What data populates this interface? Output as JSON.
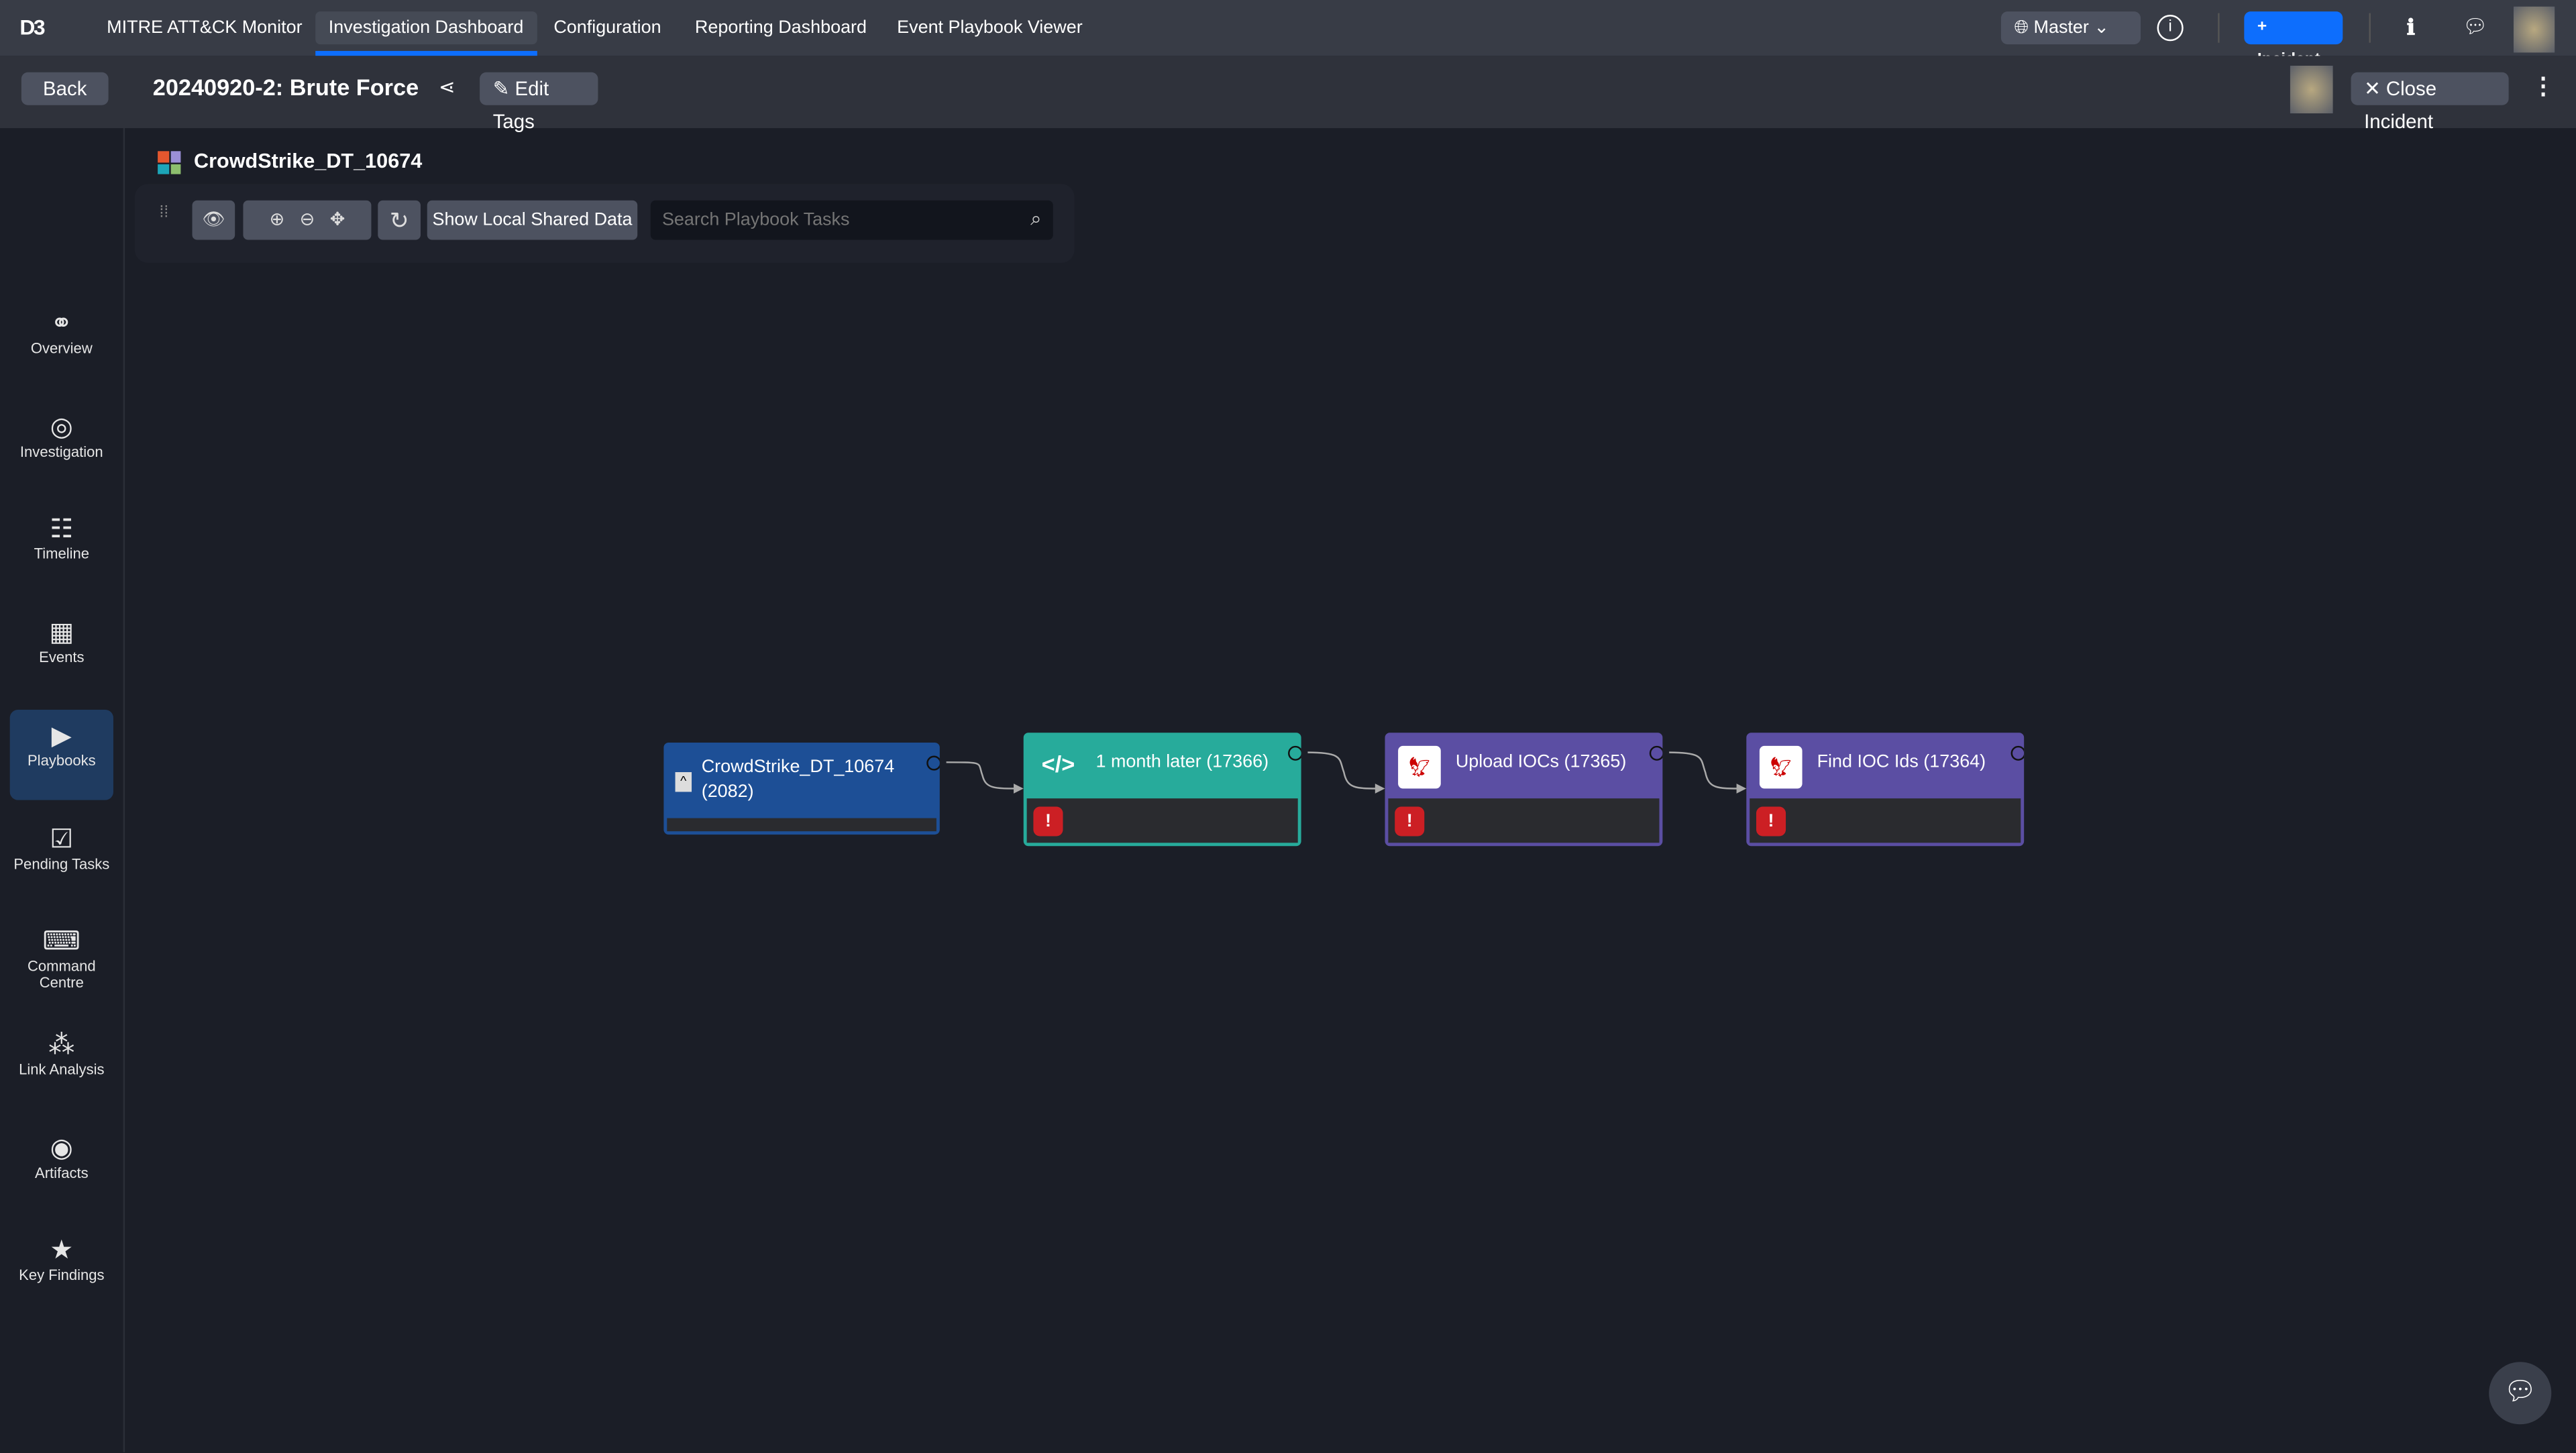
{
  "nav": {
    "logo": "D3",
    "items": [
      "MITRE ATT&CK Monitor",
      "Investigation Dashboard",
      "Configuration",
      "Reporting Dashboard",
      "Event Playbook Viewer"
    ],
    "active": "Investigation Dashboard",
    "site": "Master",
    "new_incident": "+ Incident"
  },
  "header": {
    "back": "Back",
    "title": "20240920-2: Brute Force",
    "edit_tags": "Edit Tags",
    "close_incident": "Close Incident"
  },
  "sidebar": {
    "items": [
      {
        "label": "Overview",
        "icon": "binoculars-icon"
      },
      {
        "label": "Investigation",
        "icon": "target-icon"
      },
      {
        "label": "Timeline",
        "icon": "timeline-icon"
      },
      {
        "label": "Events",
        "icon": "calendar-icon"
      },
      {
        "label": "Playbooks",
        "icon": "playbook-icon",
        "active": true
      },
      {
        "label": "Pending Tasks",
        "icon": "checklist-icon"
      },
      {
        "label": "Command Centre",
        "icon": "terminal-icon"
      },
      {
        "label": "Link Analysis",
        "icon": "network-icon"
      },
      {
        "label": "Artifacts",
        "icon": "fingerprint-icon"
      },
      {
        "label": "Key Findings",
        "icon": "star-icon"
      }
    ]
  },
  "playbook": {
    "name": "CrowdStrike_DT_10674",
    "show_shared": "Show Local Shared Data",
    "search_placeholder": "Search Playbook Tasks",
    "nodes": [
      {
        "title": "CrowdStrike_DT_10674 (2082)",
        "color": "#1d4f96"
      },
      {
        "title": "1 month later (17366)",
        "color": "#27ab9b"
      },
      {
        "title": "Upload IOCs (17365)",
        "color": "#5b4ea3"
      },
      {
        "title": "Find IOC Ids (17364)",
        "color": "#5b4ea3"
      }
    ]
  },
  "colors": {
    "accent": "#0d6efd",
    "error": "#cc1f24"
  }
}
